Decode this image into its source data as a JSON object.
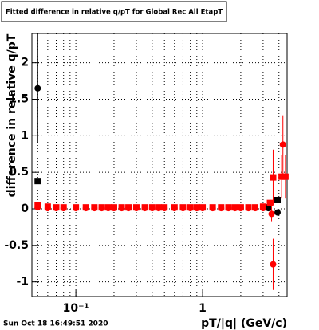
{
  "chart_data": {
    "type": "scatter",
    "title": "Fitted difference in relative q/pT for Global Rec All EtapT",
    "x_label": "pT/|q| (GeV/c)",
    "y_label": "difference in relative q/pT",
    "timestamp": "Sun Oct 18 16:49:51 2020",
    "x_log": true,
    "grid": true,
    "xlim": [
      0.045,
      4.64
    ],
    "ylim": [
      -1.2,
      2.4
    ],
    "xticks": [
      {
        "value": 0.1,
        "label": "10⁻¹"
      },
      1
    ],
    "xgrid": [
      0.05,
      0.06,
      0.07,
      0.08,
      0.09,
      0.1,
      0.2,
      0.3,
      0.4,
      0.5,
      0.6,
      0.7,
      0.8,
      0.9,
      1,
      2,
      3,
      4
    ],
    "yticks": [
      -1,
      -0.5,
      0,
      0.5,
      1,
      1.5,
      2
    ],
    "series": [
      {
        "color": "#000000",
        "marker": "circle",
        "x": [
          0.05,
          3.3,
          3.9
        ],
        "values": [
          1.65,
          0.01,
          -0.05
        ],
        "errors": [
          0.75,
          0.02,
          0.03
        ]
      },
      {
        "color": "#000000",
        "marker": "square",
        "x": [
          0.05,
          3.3,
          3.9
        ],
        "values": [
          0.38,
          0.02,
          0.12
        ],
        "errors": [
          0.02,
          0.02,
          0.03
        ]
      },
      {
        "color": "#ff0000",
        "marker": "circle",
        "x": [
          0.05,
          0.06,
          0.07,
          0.08,
          0.1,
          0.12,
          0.14,
          0.16,
          0.18,
          0.2,
          0.23,
          0.26,
          0.3,
          0.35,
          0.4,
          0.45,
          0.5,
          0.6,
          0.7,
          0.8,
          0.9,
          1.0,
          1.2,
          1.4,
          1.6,
          1.8,
          2.0,
          2.3,
          2.6,
          3.0,
          3.5,
          3.6,
          4.3
        ],
        "values": [
          0.02,
          0.01,
          0.01,
          0.01,
          0.01,
          0.01,
          0.01,
          0.01,
          0.01,
          0.01,
          0.01,
          0.01,
          0.01,
          0.01,
          0.01,
          0.01,
          0.01,
          0.01,
          0.01,
          0.01,
          0.01,
          0.01,
          0.01,
          0.01,
          0.01,
          0.01,
          0.01,
          0.01,
          0.01,
          0.01,
          -0.07,
          -0.76,
          0.88
        ],
        "errors": [
          0.03,
          0.02,
          0.02,
          0.02,
          0.01,
          0.01,
          0.01,
          0.01,
          0.01,
          0.01,
          0.01,
          0.01,
          0.01,
          0.01,
          0.01,
          0.01,
          0.01,
          0.01,
          0.01,
          0.01,
          0.01,
          0.01,
          0.01,
          0.01,
          0.01,
          0.01,
          0.01,
          0.02,
          0.02,
          0.03,
          0.1,
          0.35,
          0.4
        ]
      },
      {
        "color": "#ff0000",
        "marker": "square",
        "x": [
          0.05,
          0.06,
          0.07,
          0.08,
          0.1,
          0.12,
          0.14,
          0.16,
          0.18,
          0.2,
          0.23,
          0.26,
          0.3,
          0.35,
          0.4,
          0.45,
          0.5,
          0.6,
          0.7,
          0.8,
          0.9,
          1.0,
          1.2,
          1.4,
          1.6,
          1.8,
          2.0,
          2.3,
          2.6,
          3.0,
          3.4,
          3.6,
          4.2,
          4.5
        ],
        "values": [
          0.05,
          0.03,
          0.02,
          0.02,
          0.02,
          0.02,
          0.02,
          0.02,
          0.02,
          0.02,
          0.02,
          0.02,
          0.02,
          0.02,
          0.02,
          0.02,
          0.02,
          0.02,
          0.02,
          0.02,
          0.02,
          0.02,
          0.02,
          0.02,
          0.02,
          0.02,
          0.02,
          0.02,
          0.02,
          0.03,
          0.08,
          0.43,
          0.44,
          0.44
        ],
        "errors": [
          0.03,
          0.02,
          0.02,
          0.02,
          0.01,
          0.01,
          0.01,
          0.01,
          0.01,
          0.01,
          0.01,
          0.01,
          0.01,
          0.01,
          0.01,
          0.01,
          0.01,
          0.01,
          0.01,
          0.01,
          0.01,
          0.01,
          0.01,
          0.01,
          0.01,
          0.01,
          0.01,
          0.02,
          0.02,
          0.03,
          0.05,
          0.38,
          0.3,
          0.3
        ]
      }
    ]
  }
}
